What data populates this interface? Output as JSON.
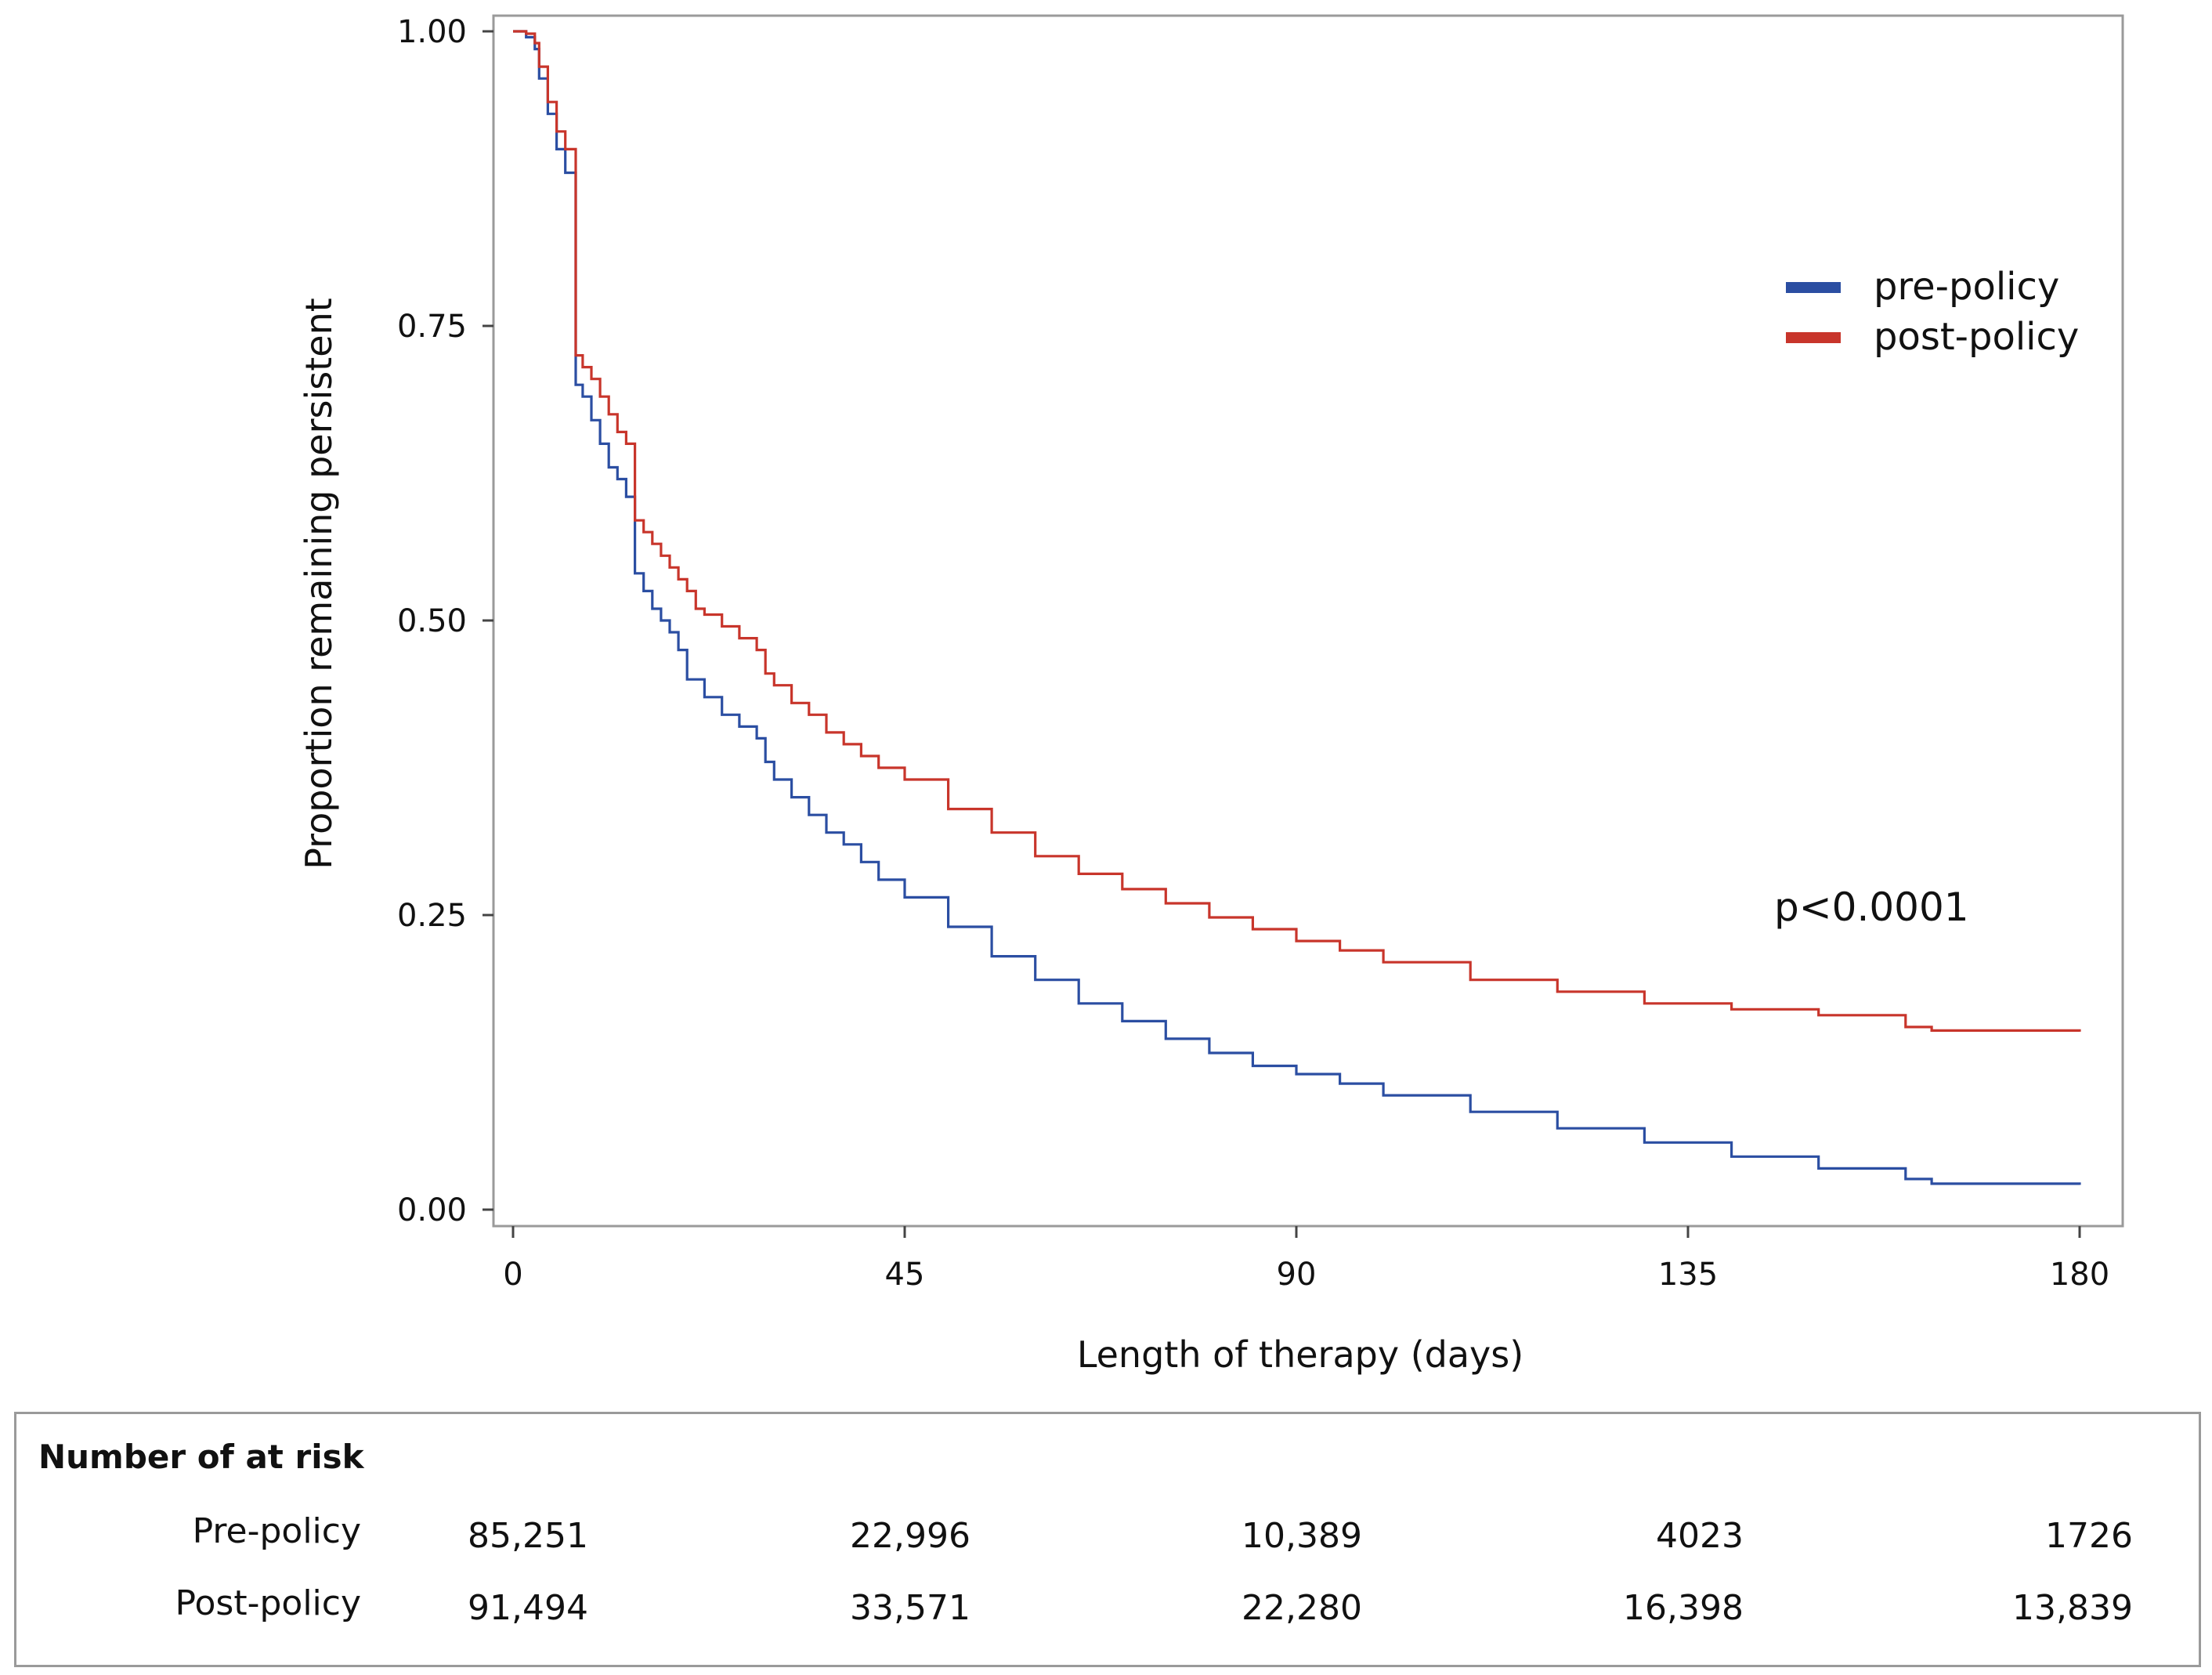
{
  "chart_data": {
    "type": "line",
    "subtype": "kaplan-meier step",
    "xlabel": "Length of therapy (days)",
    "ylabel": "Proportion remaining persistent",
    "xlim": [
      0,
      180
    ],
    "ylim": [
      0,
      1
    ],
    "x_ticks": [
      0,
      45,
      90,
      135,
      180
    ],
    "y_ticks": [
      "0.00",
      "0.25",
      "0.50",
      "0.75",
      "1.00"
    ],
    "annotation": "p<0.0001",
    "legend": {
      "position": "top-right"
    },
    "series": [
      {
        "name": "pre-policy",
        "color": "#2b4ea2",
        "x": [
          0,
          1.5,
          2.5,
          3,
          4,
          5,
          6,
          7,
          7.2,
          8,
          9,
          10,
          11,
          12,
          13,
          14,
          15,
          16,
          17,
          18,
          19,
          20,
          22,
          24,
          26,
          28,
          29,
          30,
          32,
          34,
          36,
          38,
          40,
          42,
          45,
          50,
          55,
          60,
          65,
          70,
          75,
          80,
          85,
          90,
          95,
          100,
          110,
          120,
          130,
          140,
          150,
          160,
          163,
          180
        ],
        "y": [
          1.0,
          0.995,
          0.985,
          0.96,
          0.93,
          0.9,
          0.88,
          0.88,
          0.7,
          0.69,
          0.67,
          0.65,
          0.63,
          0.62,
          0.605,
          0.54,
          0.525,
          0.51,
          0.5,
          0.49,
          0.475,
          0.45,
          0.435,
          0.42,
          0.41,
          0.4,
          0.38,
          0.365,
          0.35,
          0.335,
          0.32,
          0.31,
          0.295,
          0.28,
          0.265,
          0.24,
          0.215,
          0.195,
          0.175,
          0.16,
          0.145,
          0.133,
          0.122,
          0.115,
          0.107,
          0.097,
          0.083,
          0.069,
          0.057,
          0.045,
          0.035,
          0.026,
          0.022,
          0.021
        ]
      },
      {
        "name": "post-policy",
        "color": "#c8352b",
        "x": [
          0,
          1.5,
          2.5,
          3,
          4,
          5,
          6,
          7,
          7.2,
          8,
          9,
          10,
          11,
          12,
          13,
          14,
          15,
          16,
          17,
          18,
          19,
          20,
          21,
          22,
          24,
          26,
          28,
          29,
          30,
          32,
          34,
          36,
          38,
          40,
          42,
          45,
          50,
          55,
          60,
          65,
          70,
          75,
          80,
          85,
          90,
          95,
          100,
          110,
          120,
          130,
          140,
          150,
          160,
          163,
          180
        ],
        "y": [
          1.0,
          0.998,
          0.99,
          0.97,
          0.94,
          0.915,
          0.9,
          0.9,
          0.725,
          0.715,
          0.705,
          0.69,
          0.675,
          0.66,
          0.65,
          0.585,
          0.575,
          0.565,
          0.555,
          0.545,
          0.535,
          0.525,
          0.51,
          0.505,
          0.495,
          0.485,
          0.475,
          0.455,
          0.445,
          0.43,
          0.42,
          0.405,
          0.395,
          0.385,
          0.375,
          0.365,
          0.34,
          0.32,
          0.3,
          0.285,
          0.272,
          0.26,
          0.248,
          0.238,
          0.228,
          0.22,
          0.21,
          0.195,
          0.185,
          0.175,
          0.17,
          0.165,
          0.155,
          0.152,
          0.151
        ]
      }
    ],
    "at_risk_table": {
      "title": "Number of at risk",
      "rows": [
        {
          "label": "Pre-policy",
          "values": [
            "85,251",
            "22,996",
            "10,389",
            "4023",
            "1726"
          ]
        },
        {
          "label": "Post-policy",
          "values": [
            "91,494",
            "33,571",
            "22,280",
            "16,398",
            "13,839"
          ]
        }
      ]
    }
  }
}
